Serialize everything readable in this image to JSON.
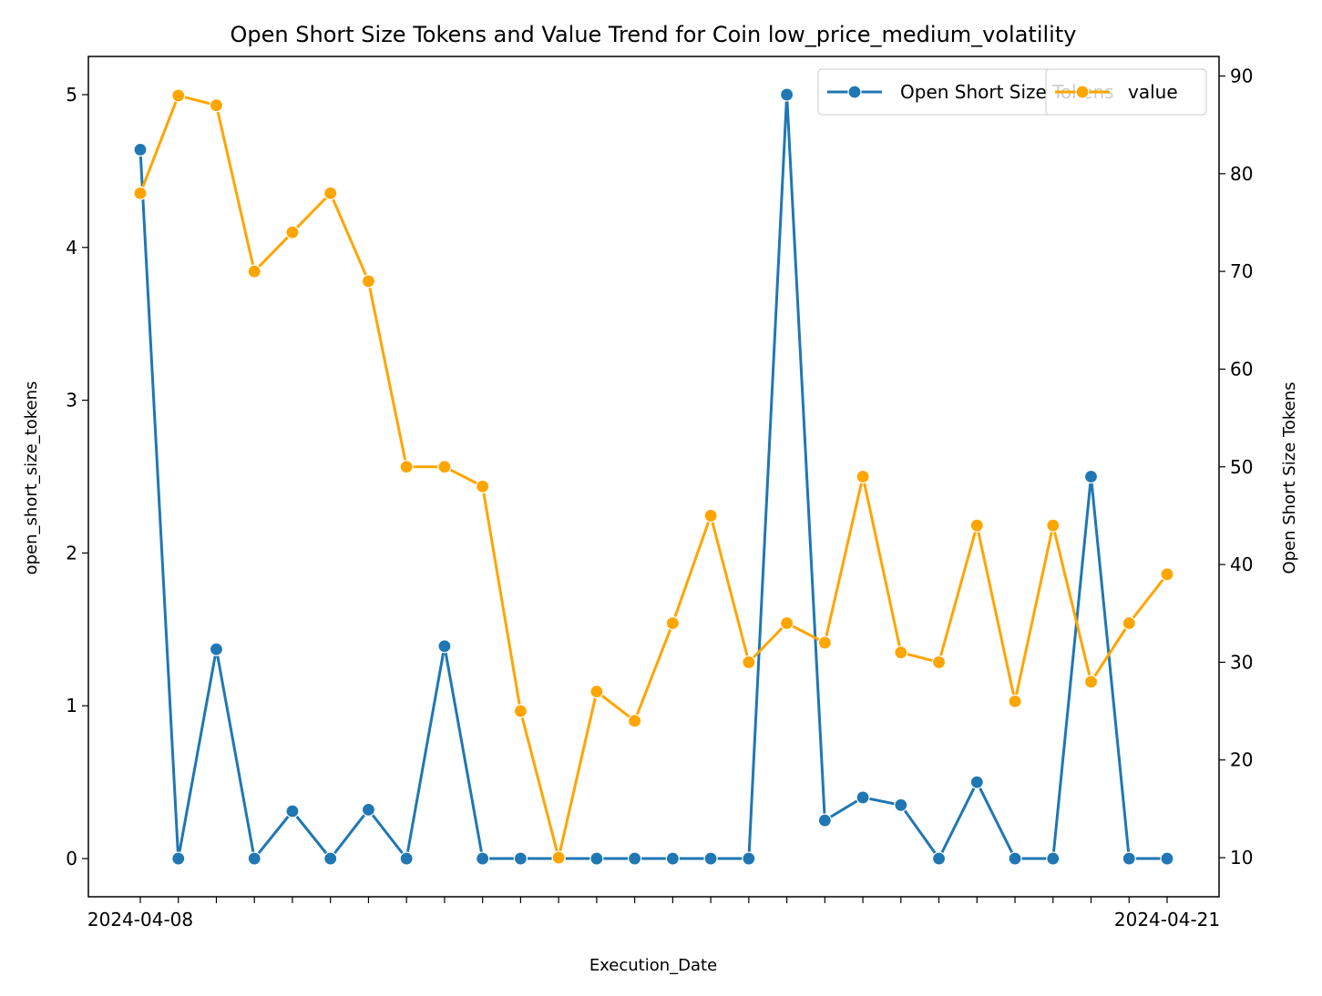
{
  "chart_data": {
    "type": "line",
    "title": "Open Short Size Tokens and Value Trend for Coin low_price_medium_volatility",
    "xlabel": "Execution_Date",
    "ylabel_left": "open_short_size_tokens",
    "ylabel_right": "Open Short Size Tokens",
    "ylim_left": [
      -0.25,
      5.25
    ],
    "ylim_right": [
      6,
      92
    ],
    "yticks_left": [
      0,
      1,
      2,
      3,
      4,
      5
    ],
    "yticks_right": [
      10,
      20,
      30,
      40,
      50,
      60,
      70,
      80,
      90
    ],
    "first_date_label": "2024-04-08",
    "last_date_label": "2024-04-21",
    "grid": false,
    "series": [
      {
        "name": "Open Short Size Tokens",
        "axis": "left",
        "color": "#1f77b4",
        "values": [
          4.64,
          0,
          1.37,
          0,
          0.31,
          0,
          0.32,
          0,
          1.39,
          0,
          0,
          0,
          0,
          0,
          0,
          0,
          0,
          5.0,
          0.25,
          0.4,
          0.35,
          0,
          0.5,
          0,
          0,
          2.5,
          0,
          0
        ]
      },
      {
        "name": "value",
        "axis": "right",
        "color": "#ffa500",
        "values": [
          78,
          88,
          87,
          70,
          74,
          78,
          69,
          50,
          50,
          48,
          25,
          10,
          27,
          24,
          34,
          45,
          30,
          34,
          32,
          49,
          31,
          30,
          44,
          26,
          44,
          28,
          34,
          39
        ]
      }
    ],
    "legends": [
      {
        "entries": [
          "Open Short Size Tokens"
        ],
        "placement": "top-right"
      },
      {
        "entries": [
          "value"
        ],
        "placement": "top-right"
      }
    ]
  }
}
